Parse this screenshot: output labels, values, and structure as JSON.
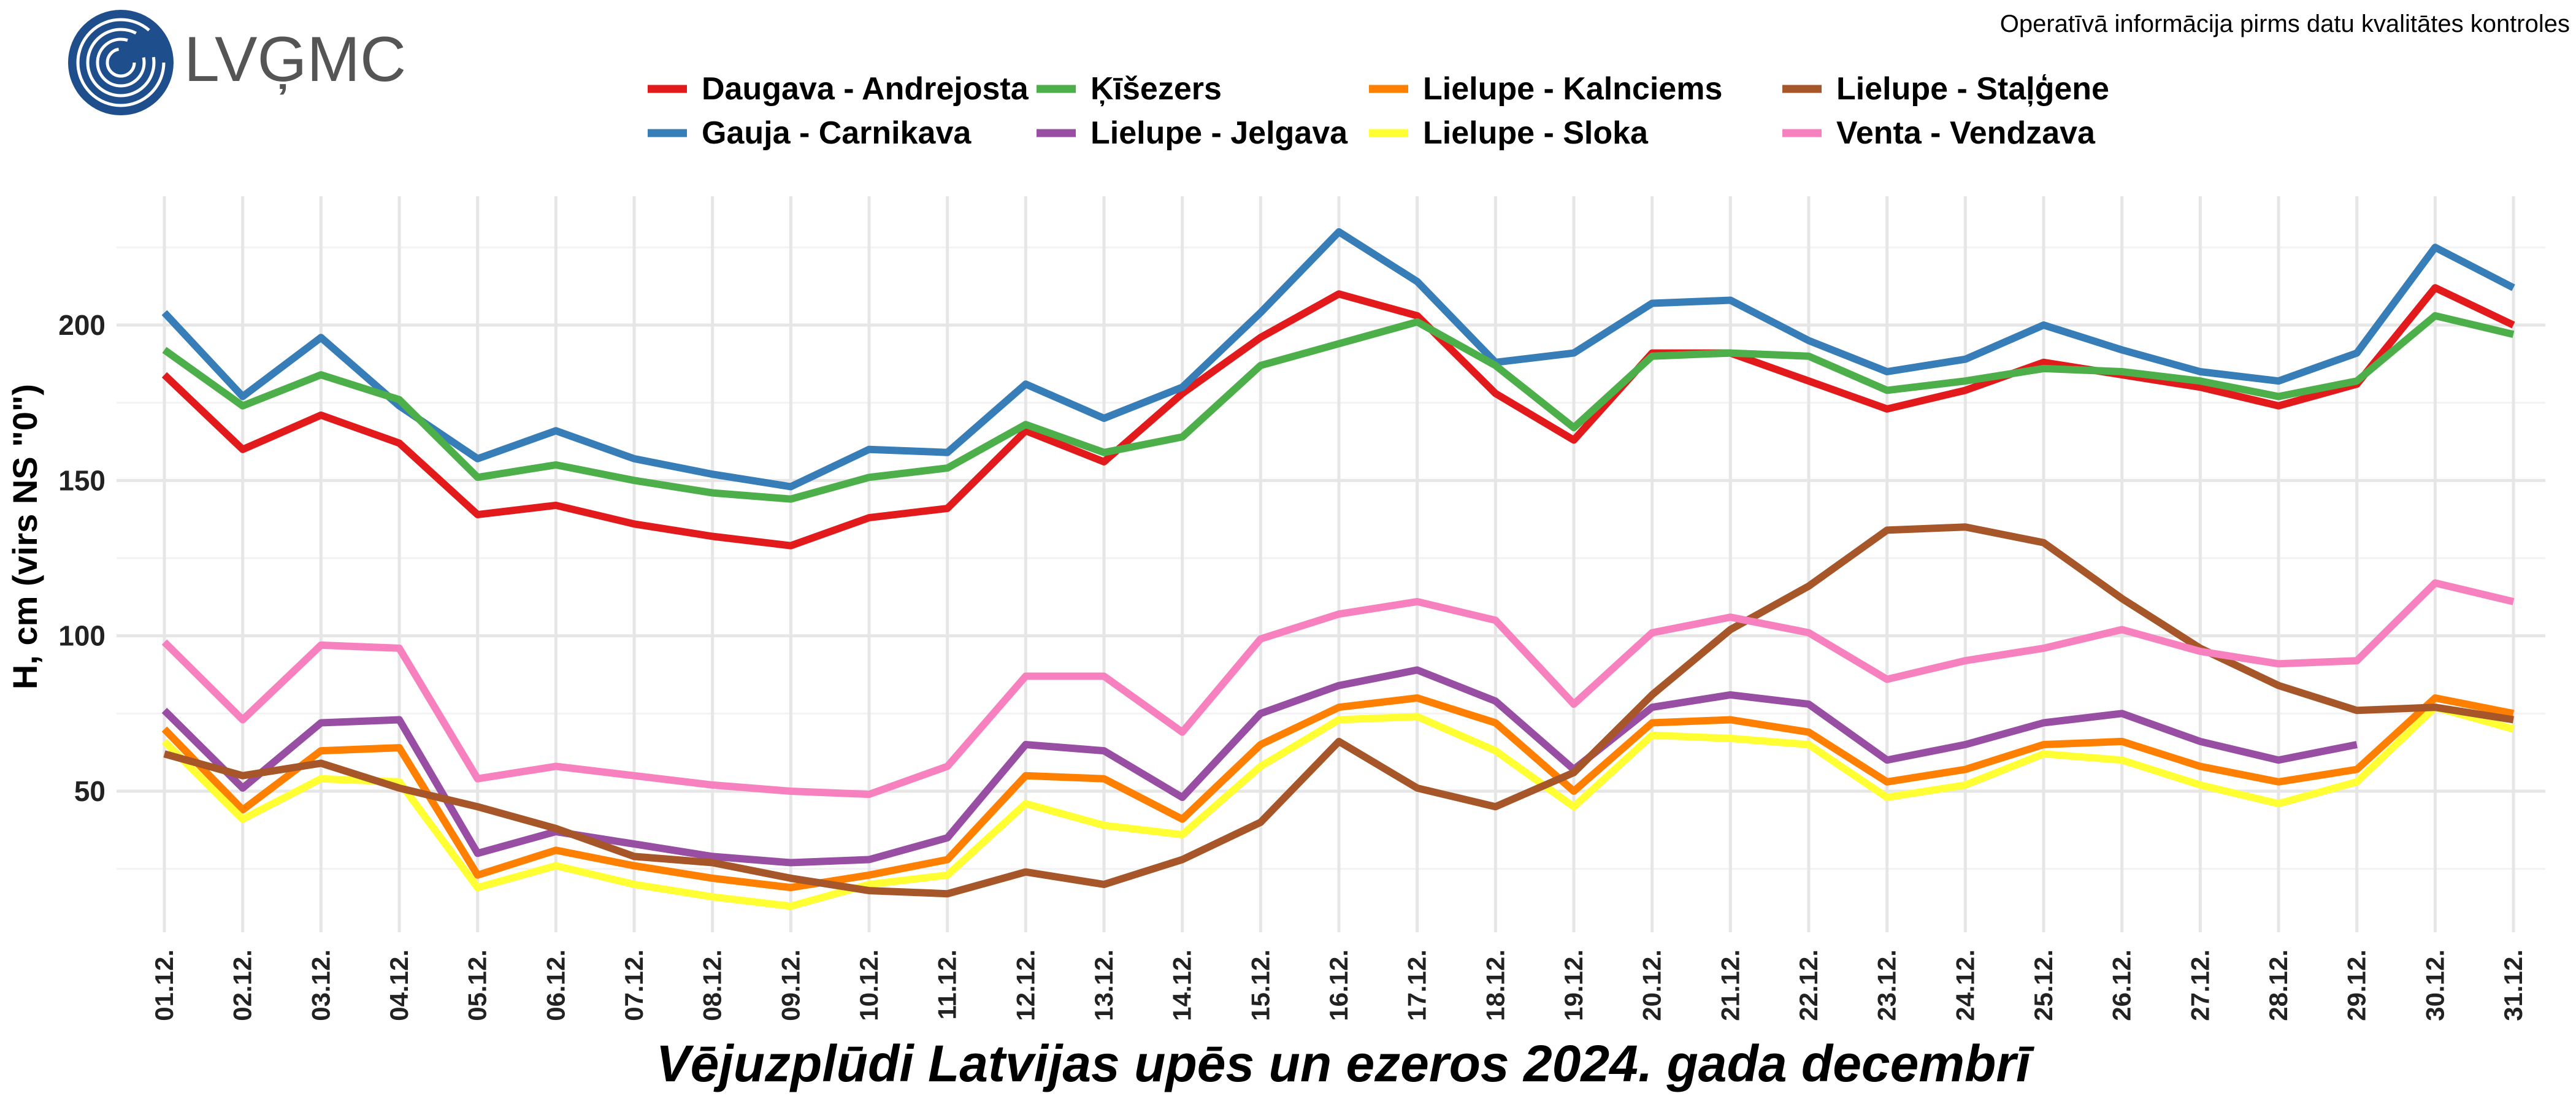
{
  "header": {
    "logo_text": "LVĢMC",
    "notice": "Operatīvā informācija pirms datu kvalitātes kontroles"
  },
  "chart_data": {
    "type": "line",
    "title": "Vējuzplūdi Latvijas upēs un ezeros 2024. gada decembrī",
    "xlabel": "",
    "ylabel": "H, cm (virs NS \"0\")",
    "ylim": [
      0,
      240
    ],
    "yticks": [
      50,
      100,
      150,
      200
    ],
    "grid": true,
    "legend_position": "top-center",
    "categories": [
      "01.12.",
      "02.12.",
      "03.12.",
      "04.12.",
      "05.12.",
      "06.12.",
      "07.12.",
      "08.12.",
      "09.12.",
      "10.12.",
      "11.12.",
      "12.12.",
      "13.12.",
      "14.12.",
      "15.12.",
      "16.12.",
      "17.12.",
      "18.12.",
      "19.12.",
      "20.12.",
      "21.12.",
      "22.12.",
      "23.12.",
      "24.12.",
      "25.12.",
      "26.12.",
      "27.12.",
      "28.12.",
      "29.12.",
      "30.12.",
      "31.12."
    ],
    "series": [
      {
        "name": "Daugava - Andrejosta",
        "color": "#e31a1c",
        "values": [
          184,
          160,
          171,
          162,
          139,
          142,
          136,
          132,
          129,
          138,
          141,
          166,
          156,
          178,
          196,
          210,
          203,
          178,
          163,
          191,
          191,
          182,
          173,
          179,
          188,
          184,
          180,
          174,
          181,
          212,
          200
        ]
      },
      {
        "name": "Gauja - Carnikava",
        "color": "#377eb8",
        "values": [
          204,
          177,
          196,
          174,
          157,
          166,
          157,
          152,
          148,
          160,
          159,
          181,
          170,
          180,
          204,
          230,
          214,
          188,
          191,
          207,
          208,
          195,
          185,
          189,
          200,
          192,
          185,
          182,
          191,
          225,
          212
        ]
      },
      {
        "name": "Ķīšezers",
        "color": "#4daf4a",
        "values": [
          192,
          174,
          184,
          176,
          151,
          155,
          150,
          146,
          144,
          151,
          154,
          168,
          159,
          164,
          187,
          194,
          201,
          187,
          167,
          190,
          191,
          190,
          179,
          182,
          186,
          185,
          182,
          177,
          182,
          203,
          197
        ]
      },
      {
        "name": "Lielupe - Jelgava",
        "color": "#984ea3",
        "values": [
          76,
          51,
          72,
          73,
          30,
          37,
          33,
          29,
          27,
          28,
          35,
          65,
          63,
          48,
          75,
          84,
          89,
          79,
          57,
          77,
          81,
          78,
          60,
          65,
          72,
          75,
          66,
          60,
          65,
          null,
          null
        ]
      },
      {
        "name": "Lielupe - Kalnciems",
        "color": "#ff7f00",
        "values": [
          70,
          44,
          63,
          64,
          23,
          31,
          26,
          22,
          19,
          23,
          28,
          55,
          54,
          41,
          65,
          77,
          80,
          72,
          50,
          72,
          73,
          69,
          53,
          57,
          65,
          66,
          58,
          53,
          57,
          80,
          75
        ]
      },
      {
        "name": "Lielupe - Sloka",
        "color": "#ffff33",
        "values": [
          66,
          41,
          54,
          53,
          19,
          26,
          20,
          16,
          13,
          20,
          23,
          46,
          39,
          36,
          58,
          73,
          74,
          63,
          45,
          68,
          67,
          65,
          48,
          52,
          62,
          60,
          52,
          46,
          53,
          77,
          70
        ]
      },
      {
        "name": "Lielupe - Staļģene",
        "color": "#a65628",
        "values": [
          62,
          55,
          59,
          51,
          45,
          38,
          29,
          27,
          22,
          18,
          17,
          24,
          20,
          28,
          40,
          66,
          51,
          45,
          56,
          81,
          102,
          116,
          134,
          135,
          130,
          112,
          96,
          84,
          76,
          77,
          73
        ]
      },
      {
        "name": "Venta - Vendzava",
        "color": "#f781bf",
        "values": [
          98,
          73,
          97,
          96,
          54,
          58,
          55,
          52,
          50,
          49,
          58,
          87,
          87,
          69,
          99,
          107,
          111,
          105,
          78,
          101,
          106,
          101,
          86,
          92,
          96,
          102,
          95,
          91,
          92,
          117,
          111
        ]
      }
    ]
  }
}
